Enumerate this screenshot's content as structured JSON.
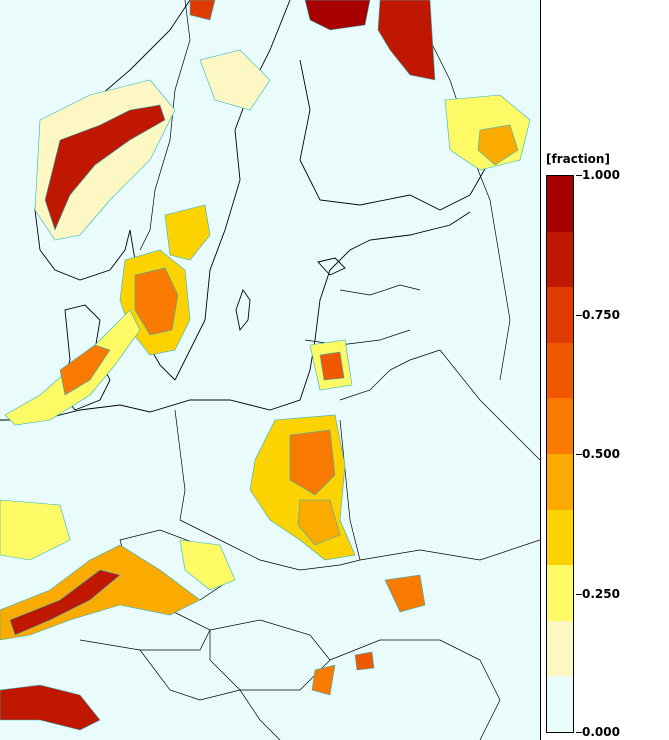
{
  "legend": {
    "title": "[fraction]",
    "tick_labels": [
      "1.000",
      "0.750",
      "0.500",
      "0.250",
      "0.000"
    ],
    "tick_values": [
      1.0,
      0.75,
      0.5,
      0.25,
      0.0
    ],
    "colors": [
      "#eafdfd",
      "#fdf7c4",
      "#fdfa66",
      "#fcd200",
      "#fbaa00",
      "#f97a00",
      "#f05800",
      "#df3a00",
      "#c01800",
      "#a60000"
    ]
  },
  "colors": {
    "background": "#e9fbfb",
    "contour": "#2bb5c6",
    "border": "#000000"
  }
}
